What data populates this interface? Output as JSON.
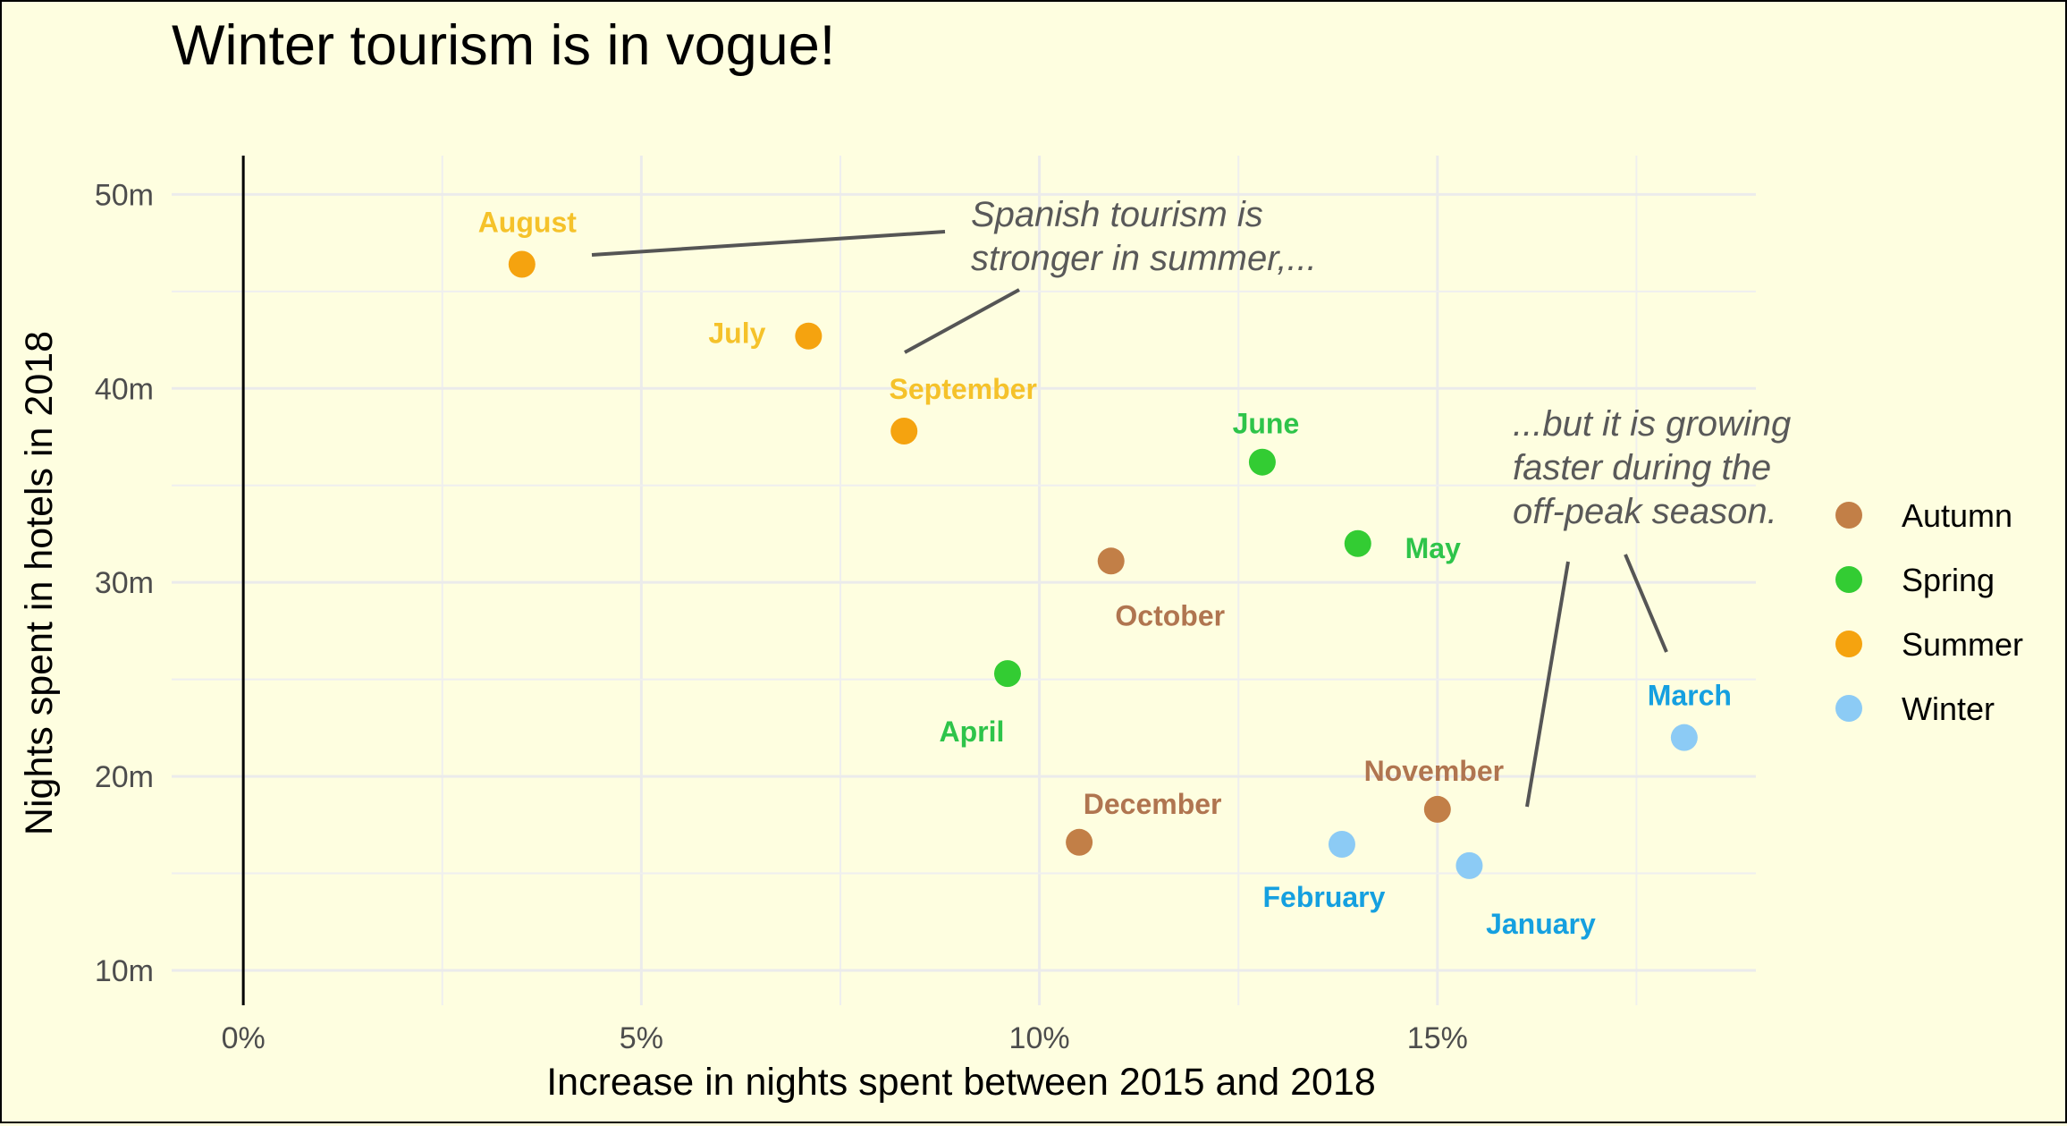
{
  "chart_data": {
    "type": "scatter",
    "title": "Winter tourism is in vogue!",
    "xlabel": "Increase in nights spent between 2015 and 2018",
    "ylabel": "Nights spent in hotels in 2018",
    "xlim": [
      -0.9,
      19.0
    ],
    "ylim": [
      8.2,
      52.0
    ],
    "x_ticks": [
      0,
      5,
      10,
      15
    ],
    "x_tick_labels": [
      "0%",
      "5%",
      "10%",
      "15%"
    ],
    "y_ticks": [
      10,
      20,
      30,
      40,
      50
    ],
    "y_tick_labels": [
      "10m",
      "20m",
      "30m",
      "40m",
      "50m"
    ],
    "grid": true,
    "legend_position": "right",
    "season_colors": {
      "Autumn": "#c27f47",
      "Spring": "#33cc33",
      "Summer": "#f5a30f",
      "Winter": "#8ccbf5"
    },
    "label_colors": {
      "Autumn": "#b07550",
      "Spring": "#2ec44a",
      "Summer": "#f5c22a",
      "Winter": "#15a0e0"
    },
    "legend": [
      "Autumn",
      "Spring",
      "Summer",
      "Winter"
    ],
    "points": [
      {
        "month": "August",
        "season": "Summer",
        "x": 3.5,
        "y": 46.4
      },
      {
        "month": "July",
        "season": "Summer",
        "x": 7.1,
        "y": 42.7
      },
      {
        "month": "September",
        "season": "Summer",
        "x": 8.3,
        "y": 37.8
      },
      {
        "month": "June",
        "season": "Spring",
        "x": 12.8,
        "y": 36.2
      },
      {
        "month": "May",
        "season": "Spring",
        "x": 14.0,
        "y": 32.0
      },
      {
        "month": "October",
        "season": "Autumn",
        "x": 10.9,
        "y": 31.1
      },
      {
        "month": "April",
        "season": "Spring",
        "x": 9.6,
        "y": 25.3
      },
      {
        "month": "March",
        "season": "Winter",
        "x": 18.1,
        "y": 22.0
      },
      {
        "month": "November",
        "season": "Autumn",
        "x": 15.0,
        "y": 18.3
      },
      {
        "month": "December",
        "season": "Autumn",
        "x": 10.5,
        "y": 16.6
      },
      {
        "month": "February",
        "season": "Winter",
        "x": 13.8,
        "y": 16.5
      },
      {
        "month": "January",
        "season": "Winter",
        "x": 15.4,
        "y": 15.4
      }
    ],
    "annotations": [
      {
        "lines": [
          "Spanish tourism is",
          "stronger in summer,..."
        ]
      },
      {
        "lines": [
          "...but it is growing",
          "faster during the",
          "off-peak season."
        ]
      }
    ]
  }
}
